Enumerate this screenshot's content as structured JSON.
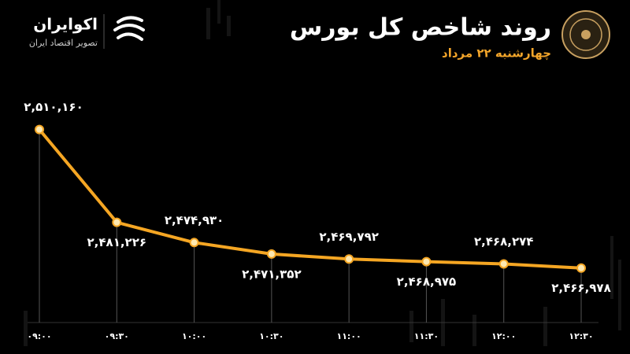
{
  "brand": {
    "name": "اکوایران",
    "tagline": "تصویر اقتصاد ایران"
  },
  "chart_data": {
    "type": "line",
    "title": "روند شاخص کل بورس",
    "subtitle": "چهارشنبه ۲۲ مرداد",
    "categories": [
      "۰۹:۰۰",
      "۰۹:۳۰",
      "۱۰:۰۰",
      "۱۰:۳۰",
      "۱۱:۰۰",
      "۱۱:۳۰",
      "۱۲:۰۰",
      "۱۲:۳۰"
    ],
    "values": [
      2510160,
      2481226,
      2474930,
      2471352,
      2469792,
      2468975,
      2468274,
      2466978
    ],
    "value_labels": [
      "۲,۵۱۰,۱۶۰",
      "۲,۴۸۱,۲۲۶",
      "۲,۴۷۴,۹۳۰",
      "۲,۴۷۱,۳۵۲",
      "۲,۴۶۹,۷۹۲",
      "۲,۴۶۸,۹۷۵",
      "۲,۴۶۸,۲۷۴",
      "۲,۴۶۶,۹۷۸"
    ],
    "color": "#f5a623",
    "ylim": [
      2450000,
      2526000
    ]
  }
}
